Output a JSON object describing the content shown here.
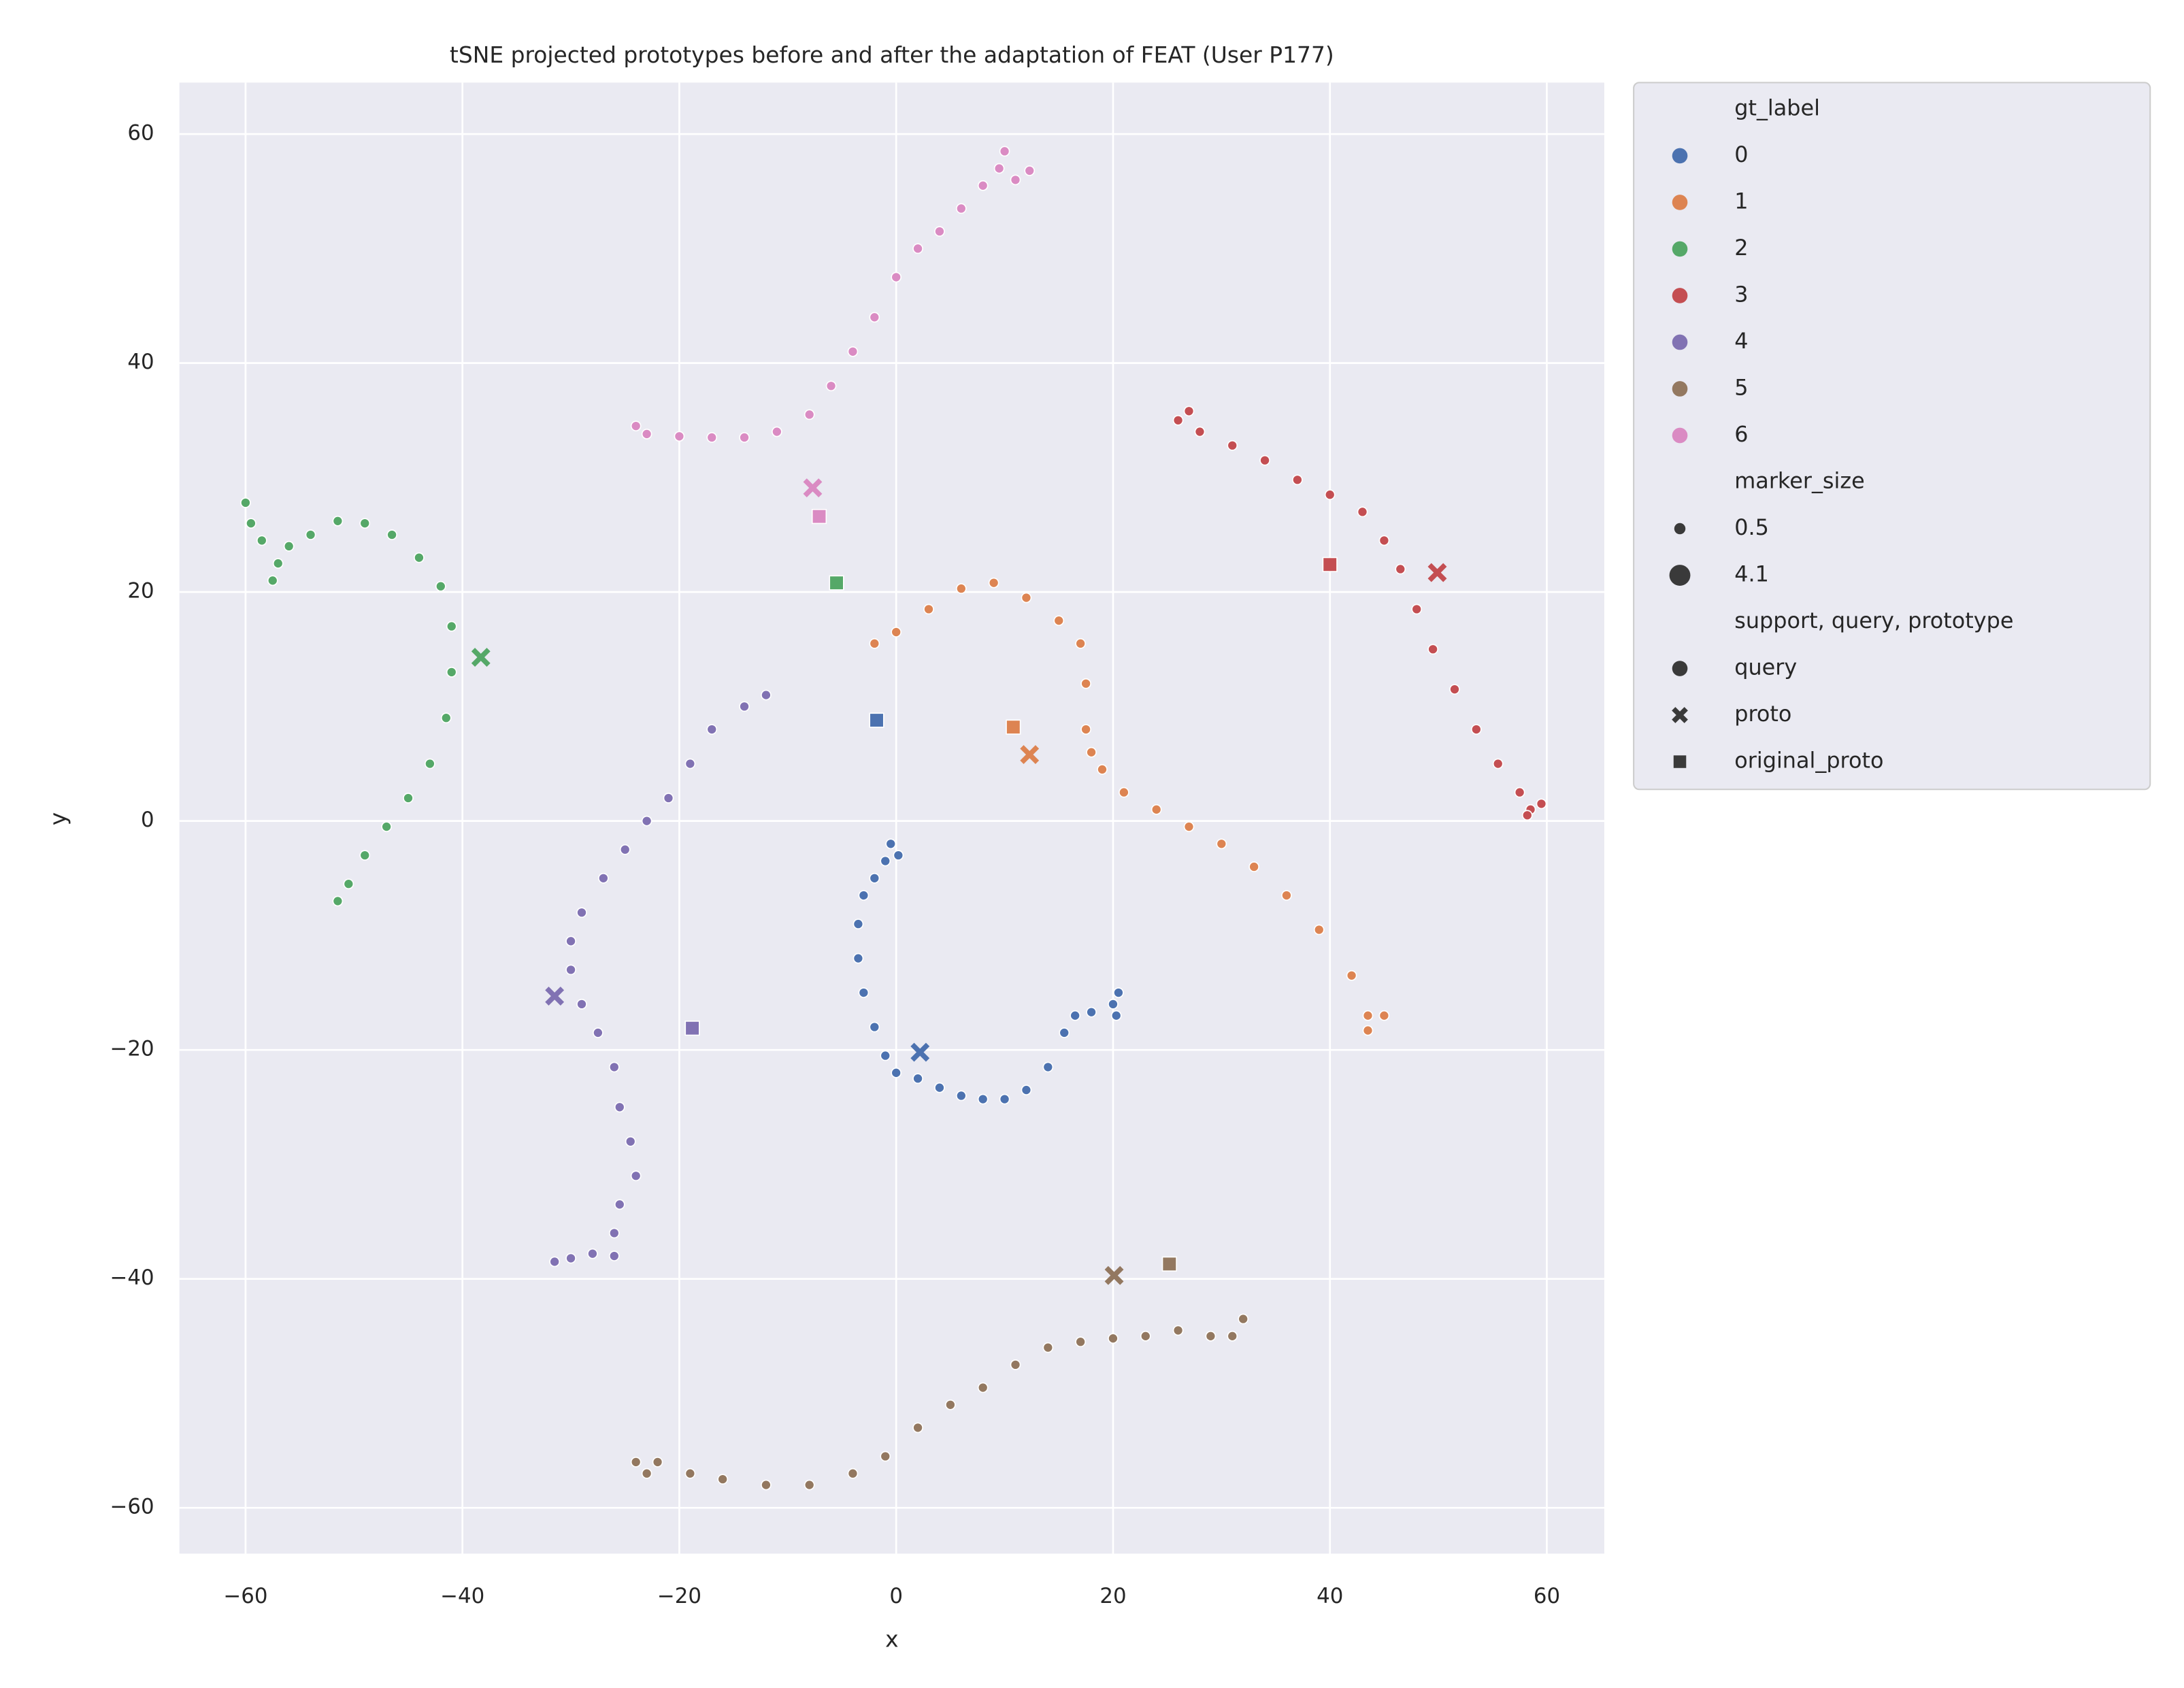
{
  "chart_data": {
    "type": "scatter",
    "title": "tSNE projected prototypes before and after the adaptation of FEAT (User P177)",
    "x_label": "x",
    "y_label": "y",
    "xlim": [
      -66.1,
      65.3
    ],
    "ylim": [
      -64.0,
      64.5
    ],
    "xticks": [
      {
        "value": -60,
        "label": "−60"
      },
      {
        "value": -40,
        "label": "−40"
      },
      {
        "value": -20,
        "label": "−20"
      },
      0,
      20,
      40,
      60
    ],
    "yticks": [
      {
        "value": -60,
        "label": "−60"
      },
      {
        "value": -40,
        "label": "−40"
      },
      {
        "value": -20,
        "label": "−20"
      },
      0,
      20,
      40,
      60
    ],
    "grid": true,
    "legend": "outside upper right",
    "legend_hue_title": "gt_label",
    "legend_size_title": "marker_size",
    "legend_sizes": [
      0.5,
      4.1
    ],
    "legend_style_title": "support, query, prototype",
    "legend_styles": [
      "query",
      "proto",
      "original_proto"
    ],
    "series": [
      {
        "name": "0",
        "color": "#4c72b0",
        "x": [
          -0.5,
          0.2,
          -1,
          -2,
          -3,
          -3.5,
          -3.5,
          -3,
          -2,
          -1,
          0,
          2,
          4,
          6,
          8,
          10,
          12,
          14,
          15.5,
          16.5,
          18,
          20,
          20.5,
          20.3
        ],
        "y": [
          -2,
          -3,
          -3.5,
          -5,
          -6.5,
          -9,
          -12,
          -15,
          -18,
          -20.5,
          -22,
          -22.5,
          -23.3,
          -24,
          -24.3,
          -24.3,
          -23.5,
          -21.5,
          -18.5,
          -17,
          -16.7,
          -16,
          -15,
          -17
        ],
        "proto": {
          "x": 2.2,
          "y": -20.2
        },
        "original_proto": {
          "x": -1.8,
          "y": 8.8
        }
      },
      {
        "name": "1",
        "color": "#dd8452",
        "x": [
          -2,
          0,
          3,
          6,
          9,
          12,
          15,
          17,
          17.5,
          17.5,
          18,
          19,
          21,
          24,
          27,
          30,
          33,
          36,
          39,
          42,
          43.5,
          45,
          43.5
        ],
        "y": [
          15.5,
          16.5,
          18.5,
          20.3,
          20.8,
          19.5,
          17.5,
          15.5,
          12,
          8,
          6,
          4.5,
          2.5,
          1,
          -0.5,
          -2,
          -4,
          -6.5,
          -9.5,
          -13.5,
          -17,
          -17,
          -18.3
        ],
        "proto": {
          "x": 12.3,
          "y": 5.8
        },
        "original_proto": {
          "x": 10.8,
          "y": 8.2
        }
      },
      {
        "name": "2",
        "color": "#55a868",
        "x": [
          -60,
          -59.5,
          -58.5,
          -57.5,
          -57,
          -56,
          -54,
          -51.5,
          -49,
          -46.5,
          -44,
          -42,
          -41,
          -41,
          -41.5,
          -43,
          -45,
          -47,
          -49,
          -50.5,
          -51.5
        ],
        "y": [
          27.8,
          26,
          24.5,
          21,
          22.5,
          24,
          25,
          26.2,
          26,
          25,
          23,
          20.5,
          17,
          13,
          9,
          5,
          2,
          -0.5,
          -3,
          -5.5,
          -7
        ],
        "proto": {
          "x": -38.3,
          "y": 14.3
        },
        "original_proto": {
          "x": -5.5,
          "y": 20.8
        }
      },
      {
        "name": "3",
        "color": "#c44e52",
        "x": [
          26,
          27,
          28,
          31,
          34,
          37,
          40,
          43,
          45,
          46.5,
          48,
          49.5,
          51.5,
          53.5,
          55.5,
          57.5,
          58.5,
          59.5,
          58.2
        ],
        "y": [
          35,
          35.8,
          34,
          32.8,
          31.5,
          29.8,
          28.5,
          27,
          24.5,
          22,
          18.5,
          15,
          11.5,
          8,
          5,
          2.5,
          1,
          1.5,
          0.5
        ],
        "proto": {
          "x": 49.9,
          "y": 21.7
        },
        "original_proto": {
          "x": 40,
          "y": 22.4
        }
      },
      {
        "name": "4",
        "color": "#8172b3",
        "x": [
          -12,
          -14,
          -17,
          -19,
          -21,
          -23,
          -25,
          -27,
          -29,
          -30,
          -30,
          -29,
          -27.5,
          -26,
          -25.5,
          -24.5,
          -24,
          -25.5,
          -26,
          -26,
          -28,
          -30,
          -31.5
        ],
        "y": [
          11,
          10,
          8,
          5,
          2,
          0,
          -2.5,
          -5,
          -8,
          -10.5,
          -13,
          -16,
          -18.5,
          -21.5,
          -25,
          -28,
          -31,
          -33.5,
          -36,
          -38,
          -37.8,
          -38.2,
          -38.5
        ],
        "proto": {
          "x": -31.5,
          "y": -15.3
        },
        "original_proto": {
          "x": -18.8,
          "y": -18.1
        }
      },
      {
        "name": "5",
        "color": "#937860",
        "x": [
          -24,
          -23,
          -22,
          -19,
          -16,
          -12,
          -8,
          -4,
          -1,
          2,
          5,
          8,
          11,
          14,
          17,
          20,
          23,
          26,
          29,
          31,
          32
        ],
        "y": [
          -56,
          -57,
          -56,
          -57,
          -57.5,
          -58,
          -58,
          -57,
          -55.5,
          -53,
          -51,
          -49.5,
          -47.5,
          -46,
          -45.5,
          -45.2,
          -45,
          -44.5,
          -45,
          -45,
          -43.5
        ],
        "proto": {
          "x": 20.1,
          "y": -39.7
        },
        "original_proto": {
          "x": 25.2,
          "y": -38.7
        }
      },
      {
        "name": "6",
        "color": "#da8bc3",
        "x": [
          -24,
          -23,
          -20,
          -17,
          -14,
          -11,
          -8,
          -6,
          -4,
          -2,
          0,
          2,
          4,
          6,
          8,
          9.5,
          10,
          11,
          12.3
        ],
        "y": [
          34.5,
          33.8,
          33.6,
          33.5,
          33.5,
          34,
          35.5,
          38,
          41,
          44,
          47.5,
          50,
          51.5,
          53.5,
          55.5,
          57,
          58.5,
          56,
          56.8
        ],
        "proto": {
          "x": -7.7,
          "y": 29.1
        },
        "original_proto": {
          "x": -7.1,
          "y": 26.6
        }
      }
    ]
  }
}
